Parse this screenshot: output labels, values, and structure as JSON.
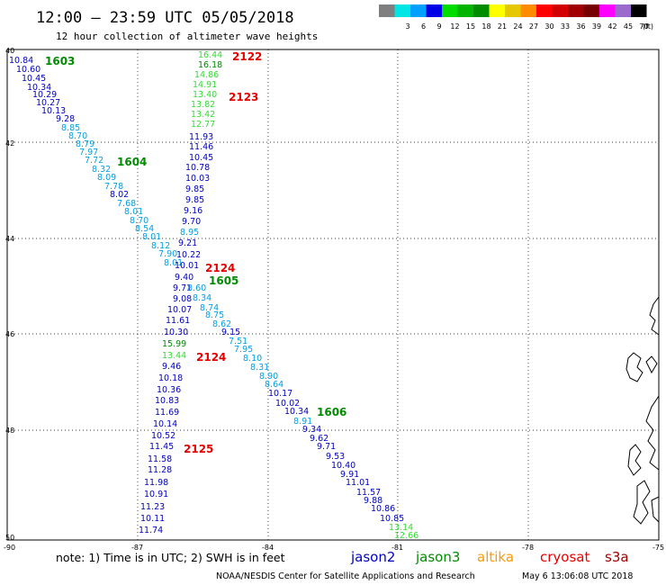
{
  "header": {
    "title": "12:00  –  23:59 UTC 05/05/2018",
    "subtitle": "12 hour collection of altimeter wave heights"
  },
  "legend": {
    "unit": "(ft)",
    "swatches": [
      {
        "label": "",
        "color": "#7f7f7f"
      },
      {
        "label": "3",
        "color": "#00e5e5"
      },
      {
        "label": "6",
        "color": "#00a0ff"
      },
      {
        "label": "9",
        "color": "#0000e6"
      },
      {
        "label": "12",
        "color": "#00dc00"
      },
      {
        "label": "15",
        "color": "#00b400"
      },
      {
        "label": "18",
        "color": "#008c00"
      },
      {
        "label": "21",
        "color": "#ffff00"
      },
      {
        "label": "24",
        "color": "#e6c800"
      },
      {
        "label": "27",
        "color": "#ff8c00"
      },
      {
        "label": "30",
        "color": "#ff0000"
      },
      {
        "label": "33",
        "color": "#d20000"
      },
      {
        "label": "36",
        "color": "#a00000"
      },
      {
        "label": "39",
        "color": "#780000"
      },
      {
        "label": "42",
        "color": "#ff00ff"
      },
      {
        "label": "45",
        "color": "#9a6acd"
      },
      {
        "label": "70",
        "color": "#000000"
      }
    ]
  },
  "map": {
    "lat_labels": [
      "40",
      "42",
      "44",
      "46",
      "48",
      "50"
    ],
    "lon_labels": [
      "-90",
      "-87",
      "-84",
      "-81",
      "-78",
      "-75"
    ],
    "track_colors": {
      "jason2": "#0000c8",
      "jason3": "#008c00",
      "jason3_light": "#33dd33",
      "cyan": "#00a0e6",
      "pass_red": "#e60000"
    },
    "pass_labels": [
      {
        "text": "1603",
        "color": "#008c00"
      },
      {
        "text": "2122",
        "color": "#e60000"
      },
      {
        "text": "2123",
        "color": "#e60000"
      },
      {
        "text": "1604",
        "color": "#008c00"
      },
      {
        "text": "2124",
        "color": "#e60000"
      },
      {
        "text": "1605",
        "color": "#008c00"
      },
      {
        "text": "2124",
        "color": "#e60000"
      },
      {
        "text": "1606",
        "color": "#008c00"
      },
      {
        "text": "2125",
        "color": "#e60000"
      }
    ],
    "observations": [
      {
        "v": "10.84",
        "c": "#0000c8"
      },
      {
        "v": "10.60",
        "c": "#0000c8"
      },
      {
        "v": "10.45",
        "c": "#0000c8"
      },
      {
        "v": "10.34",
        "c": "#0000c8"
      },
      {
        "v": "10.29",
        "c": "#0000c8"
      },
      {
        "v": "10.27",
        "c": "#0000c8"
      },
      {
        "v": "10.13",
        "c": "#0000c8"
      },
      {
        "v": "9.28",
        "c": "#0000c8"
      },
      {
        "v": "8.85",
        "c": "#00a0e6"
      },
      {
        "v": "8.70",
        "c": "#00a0e6"
      },
      {
        "v": "8.79",
        "c": "#00a0e6"
      },
      {
        "v": "7.97",
        "c": "#00a0e6"
      },
      {
        "v": "7.72",
        "c": "#00a0e6"
      },
      {
        "v": "8.32",
        "c": "#00a0e6"
      },
      {
        "v": "8.09",
        "c": "#00a0e6"
      },
      {
        "v": "7.78",
        "c": "#00a0e6"
      },
      {
        "v": "8.02",
        "c": "#0000c8"
      },
      {
        "v": "7.68",
        "c": "#00a0e6"
      },
      {
        "v": "8.01",
        "c": "#00a0e6"
      },
      {
        "v": "8.70",
        "c": "#00a0e6"
      },
      {
        "v": "8.54",
        "c": "#00a0e6"
      },
      {
        "v": "8.01",
        "c": "#00a0e6"
      },
      {
        "v": "8.12",
        "c": "#00a0e6"
      },
      {
        "v": "7.90",
        "c": "#00a0e6"
      },
      {
        "v": "8.01",
        "c": "#00a0e6"
      },
      {
        "v": "16.44",
        "c": "#33dd33"
      },
      {
        "v": "16.18",
        "c": "#008c00"
      },
      {
        "v": "14.86",
        "c": "#33dd33"
      },
      {
        "v": "14.91",
        "c": "#33dd33"
      },
      {
        "v": "13.40",
        "c": "#33dd33"
      },
      {
        "v": "13.82",
        "c": "#33dd33"
      },
      {
        "v": "13.42",
        "c": "#33dd33"
      },
      {
        "v": "12.77",
        "c": "#33dd33"
      },
      {
        "v": "11.93",
        "c": "#0000c8"
      },
      {
        "v": "11.46",
        "c": "#0000c8"
      },
      {
        "v": "10.45",
        "c": "#0000c8"
      },
      {
        "v": "10.78",
        "c": "#0000c8"
      },
      {
        "v": "10.03",
        "c": "#0000c8"
      },
      {
        "v": "9.85",
        "c": "#0000c8"
      },
      {
        "v": "9.85",
        "c": "#0000c8"
      },
      {
        "v": "9.16",
        "c": "#0000c8"
      },
      {
        "v": "9.70",
        "c": "#0000c8"
      },
      {
        "v": "8.95",
        "c": "#00a0e6"
      },
      {
        "v": "9.21",
        "c": "#0000c8"
      },
      {
        "v": "10.22",
        "c": "#0000c8"
      },
      {
        "v": "10.01",
        "c": "#0000c8"
      },
      {
        "v": "9.40",
        "c": "#0000c8"
      },
      {
        "v": "9.71",
        "c": "#0000c8"
      },
      {
        "v": "9.08",
        "c": "#0000c8"
      },
      {
        "v": "10.07",
        "c": "#0000c8"
      },
      {
        "v": "11.61",
        "c": "#0000c8"
      },
      {
        "v": "10.30",
        "c": "#0000c8"
      },
      {
        "v": "15.99",
        "c": "#008c00"
      },
      {
        "v": "13.44",
        "c": "#33dd33"
      },
      {
        "v": "9.46",
        "c": "#0000c8"
      },
      {
        "v": "10.18",
        "c": "#0000c8"
      },
      {
        "v": "10.36",
        "c": "#0000c8"
      },
      {
        "v": "10.83",
        "c": "#0000c8"
      },
      {
        "v": "11.69",
        "c": "#0000c8"
      },
      {
        "v": "10.14",
        "c": "#0000c8"
      },
      {
        "v": "10.52",
        "c": "#0000c8"
      },
      {
        "v": "11.45",
        "c": "#0000c8"
      },
      {
        "v": "11.58",
        "c": "#0000c8"
      },
      {
        "v": "11.28",
        "c": "#0000c8"
      },
      {
        "v": "11.98",
        "c": "#0000c8"
      },
      {
        "v": "10.91",
        "c": "#0000c8"
      },
      {
        "v": "11.23",
        "c": "#0000c8"
      },
      {
        "v": "10.11",
        "c": "#0000c8"
      },
      {
        "v": "11.74",
        "c": "#0000c8"
      },
      {
        "v": "8.60",
        "c": "#00a0e6"
      },
      {
        "v": "8.34",
        "c": "#00a0e6"
      },
      {
        "v": "8.74",
        "c": "#00a0e6"
      },
      {
        "v": "8.75",
        "c": "#00a0e6"
      },
      {
        "v": "8.62",
        "c": "#00a0e6"
      },
      {
        "v": "9.15",
        "c": "#0000c8"
      },
      {
        "v": "7.51",
        "c": "#00a0e6"
      },
      {
        "v": "7.95",
        "c": "#00a0e6"
      },
      {
        "v": "8.10",
        "c": "#00a0e6"
      },
      {
        "v": "8.31",
        "c": "#00a0e6"
      },
      {
        "v": "8.90",
        "c": "#00a0e6"
      },
      {
        "v": "8.64",
        "c": "#00a0e6"
      },
      {
        "v": "10.17",
        "c": "#0000c8"
      },
      {
        "v": "10.02",
        "c": "#0000c8"
      },
      {
        "v": "10.34",
        "c": "#0000c8"
      },
      {
        "v": "8.91",
        "c": "#00a0e6"
      },
      {
        "v": "9.34",
        "c": "#0000c8"
      },
      {
        "v": "9.62",
        "c": "#0000c8"
      },
      {
        "v": "9.71",
        "c": "#0000c8"
      },
      {
        "v": "9.53",
        "c": "#0000c8"
      },
      {
        "v": "10.40",
        "c": "#0000c8"
      },
      {
        "v": "9.91",
        "c": "#0000c8"
      },
      {
        "v": "11.01",
        "c": "#0000c8"
      },
      {
        "v": "11.57",
        "c": "#0000c8"
      },
      {
        "v": "9.88",
        "c": "#0000c8"
      },
      {
        "v": "10.86",
        "c": "#0000c8"
      },
      {
        "v": "10.85",
        "c": "#0000c8"
      },
      {
        "v": "13.14",
        "c": "#33dd33"
      },
      {
        "v": "12.66",
        "c": "#33dd33"
      }
    ]
  },
  "bottom": {
    "note": "note:  1) Time is in UTC; 2) SWH is in feet",
    "satellites": [
      {
        "name": "jason2",
        "color": "#0000c8"
      },
      {
        "name": "jason3",
        "color": "#008c00"
      },
      {
        "name": "altika",
        "color": "#ff9900"
      },
      {
        "name": "cryosat",
        "color": "#e60000"
      },
      {
        "name": "s3a",
        "color": "#a00000"
      }
    ],
    "credit": "NOAA/NESDIS Center for Satellite Applications and Research",
    "timestamp": "May  6 13:06:08 UTC 2018"
  }
}
